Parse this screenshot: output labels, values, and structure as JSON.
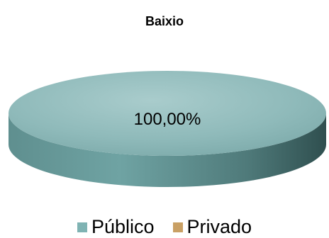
{
  "chart_data": {
    "type": "pie",
    "title": "Baixio",
    "slices": [
      {
        "label": "Público",
        "value": 100.0,
        "display": "100,00%",
        "color": "#7fb3b3"
      },
      {
        "label": "Privado",
        "value": 0.0,
        "display": "",
        "color": "#c9a064"
      }
    ],
    "legend_position": "bottom"
  }
}
